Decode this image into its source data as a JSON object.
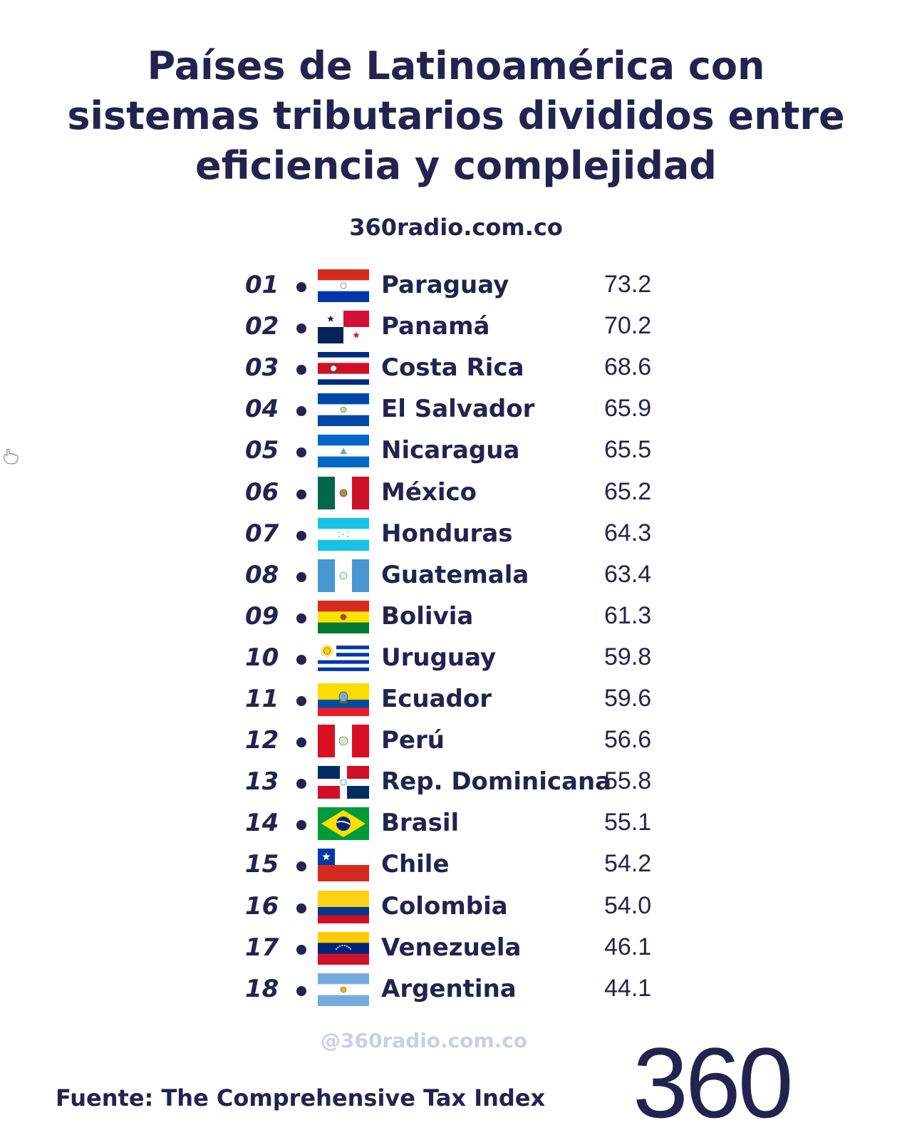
{
  "chart_data": {
    "type": "table",
    "title_lines": [
      "Países de Latinoamérica con",
      "sistemas tributarios divididos entre",
      "eficiencia y complejidad"
    ],
    "rows": [
      {
        "rank": "01",
        "country": "Paraguay",
        "value": 73.2,
        "flag": "paraguay"
      },
      {
        "rank": "02",
        "country": "Panamá",
        "value": 70.2,
        "flag": "panama"
      },
      {
        "rank": "03",
        "country": "Costa Rica",
        "value": 68.6,
        "flag": "costa-rica"
      },
      {
        "rank": "04",
        "country": "El Salvador",
        "value": 65.9,
        "flag": "el-salvador"
      },
      {
        "rank": "05",
        "country": "Nicaragua",
        "value": 65.5,
        "flag": "nicaragua"
      },
      {
        "rank": "06",
        "country": "México",
        "value": 65.2,
        "flag": "mexico"
      },
      {
        "rank": "07",
        "country": "Honduras",
        "value": 64.3,
        "flag": "honduras"
      },
      {
        "rank": "08",
        "country": "Guatemala",
        "value": 63.4,
        "flag": "guatemala"
      },
      {
        "rank": "09",
        "country": "Bolivia",
        "value": 61.3,
        "flag": "bolivia"
      },
      {
        "rank": "10",
        "country": "Uruguay",
        "value": 59.8,
        "flag": "uruguay"
      },
      {
        "rank": "11",
        "country": "Ecuador",
        "value": 59.6,
        "flag": "ecuador"
      },
      {
        "rank": "12",
        "country": "Perú",
        "value": 56.6,
        "flag": "peru"
      },
      {
        "rank": "13",
        "country": "Rep. Dominicana",
        "value": 55.8,
        "flag": "dominican-republic"
      },
      {
        "rank": "14",
        "country": "Brasil",
        "value": 55.1,
        "flag": "brazil"
      },
      {
        "rank": "15",
        "country": "Chile",
        "value": 54.2,
        "flag": "chile"
      },
      {
        "rank": "16",
        "country": "Colombia",
        "value": 54.0,
        "flag": "colombia"
      },
      {
        "rank": "17",
        "country": "Venezuela",
        "value": 46.1,
        "flag": "venezuela"
      },
      {
        "rank": "18",
        "country": "Argentina",
        "value": 44.1,
        "flag": "argentina"
      }
    ]
  },
  "site": "360radio.com.co",
  "watermark": "@360radio.com.co",
  "source": "Fuente: The Comprehensive Tax Index",
  "logo": "360",
  "colors": {
    "text": "#24234f",
    "watermark": "#c9d0e6",
    "background": "#ffffff"
  }
}
